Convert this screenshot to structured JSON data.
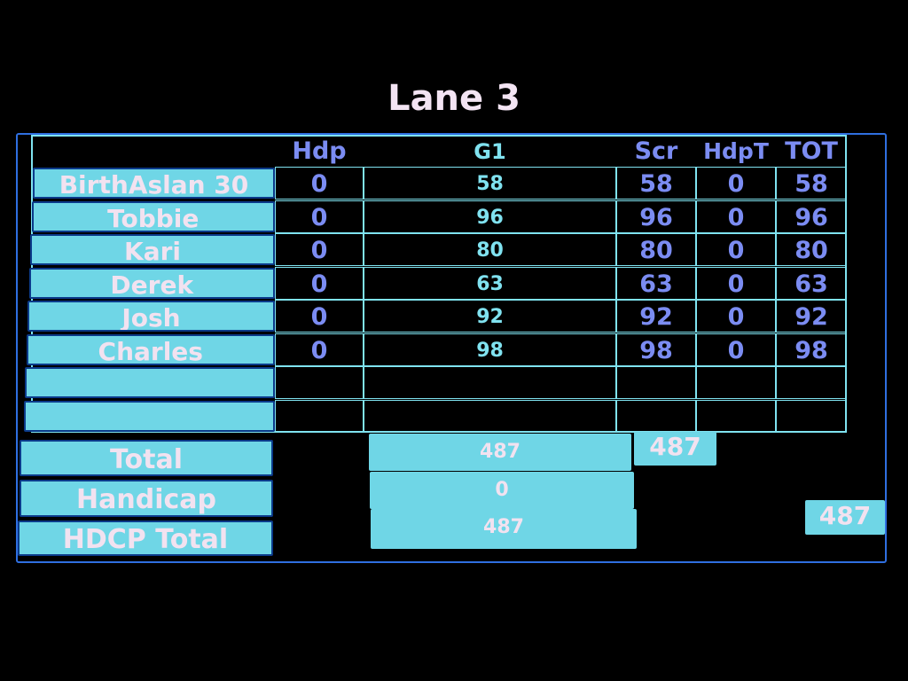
{
  "title": "Lane 3",
  "headers": {
    "hdp": "Hdp",
    "g1": "G1",
    "scr": "Scr",
    "hdpt": "HdpT",
    "tot": "TOT"
  },
  "players": [
    {
      "name": "BirthAslan 30",
      "hdp": "0",
      "g1": "58",
      "scr": "58",
      "hdpt": "0",
      "tot": "58"
    },
    {
      "name": "Tobbie",
      "hdp": "0",
      "g1": "96",
      "scr": "96",
      "hdpt": "0",
      "tot": "96"
    },
    {
      "name": "Kari",
      "hdp": "0",
      "g1": "80",
      "scr": "80",
      "hdpt": "0",
      "tot": "80"
    },
    {
      "name": "Derek",
      "hdp": "0",
      "g1": "63",
      "scr": "63",
      "hdpt": "0",
      "tot": "63"
    },
    {
      "name": "Josh",
      "hdp": "0",
      "g1": "92",
      "scr": "92",
      "hdpt": "0",
      "tot": "92"
    },
    {
      "name": "Charles",
      "hdp": "0",
      "g1": "98",
      "scr": "98",
      "hdpt": "0",
      "tot": "98"
    },
    {
      "name": "",
      "hdp": "",
      "g1": "",
      "scr": "",
      "hdpt": "",
      "tot": ""
    },
    {
      "name": "",
      "hdp": "",
      "g1": "",
      "scr": "",
      "hdpt": "",
      "tot": ""
    }
  ],
  "summary": {
    "total_label": "Total",
    "total_g1": "487",
    "total_scr": "487",
    "handicap_label": "Handicap",
    "handicap_g1": "0",
    "hdcp_total_label": "HDCP Total",
    "hdcp_total_g1": "487",
    "hdcp_total_tot": "487"
  },
  "colors": {
    "accent": "#6fd6e6",
    "number_blue": "#7b8cf2",
    "frame": "#2f6fe0"
  }
}
